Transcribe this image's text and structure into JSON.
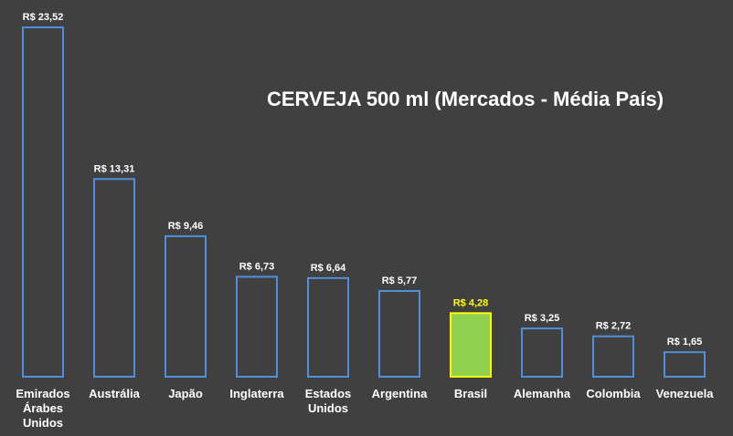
{
  "chart_data": {
    "type": "bar",
    "title": "CERVEJA 500 ml (Mercados - Média País)",
    "categories": [
      "Emirados Árabes Unidos",
      "Austrália",
      "Japão",
      "Inglaterra",
      "Estados Unidos",
      "Argentina",
      "Brasil",
      "Alemanha",
      "Colombia",
      "Venezuela"
    ],
    "category_lines": [
      [
        "Emirados",
        "Árabes",
        "Unidos"
      ],
      [
        "Austrália"
      ],
      [
        "Japão"
      ],
      [
        "Inglaterra"
      ],
      [
        "Estados",
        "Unidos"
      ],
      [
        "Argentina"
      ],
      [
        "Brasil"
      ],
      [
        "Alemanha"
      ],
      [
        "Colombia"
      ],
      [
        "Venezuela"
      ]
    ],
    "values": [
      23.52,
      13.31,
      9.46,
      6.73,
      6.64,
      5.77,
      4.28,
      3.25,
      2.72,
      1.65
    ],
    "data_labels": [
      "R$ 23,52",
      "R$ 13,31",
      "R$ 9,46",
      "R$ 6,73",
      "R$ 6,64",
      "R$ 5,77",
      "R$ 4,28",
      "R$ 3,25",
      "R$ 2,72",
      "R$ 1,65"
    ],
    "highlight_index": 6,
    "ylim": [
      0,
      23.52
    ],
    "grid": false,
    "legend": "none"
  },
  "colors": {
    "background": "#404040",
    "bar_outline": "#4f8fdc",
    "highlight_fill": "#92d050",
    "highlight_outline": "#ffff00",
    "highlight_label": "#ffff00",
    "text": "#ffffff"
  }
}
